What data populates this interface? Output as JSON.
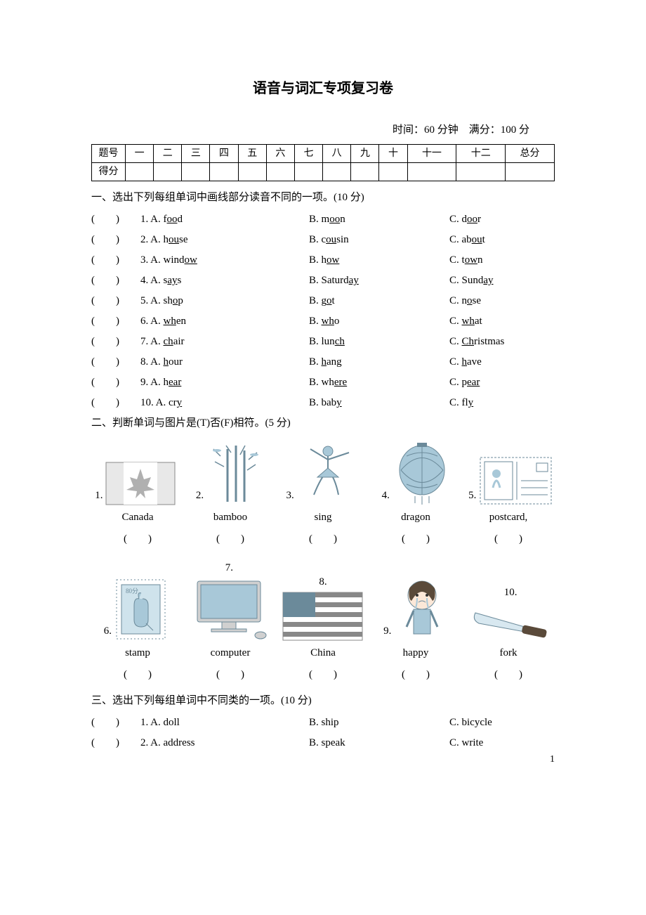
{
  "title": "语音与词汇专项复习卷",
  "meta": "时间：60 分钟　满分：100 分",
  "score_header": [
    "题号",
    "一",
    "二",
    "三",
    "四",
    "五",
    "六",
    "七",
    "八",
    "九",
    "十",
    "十一",
    "十二",
    "总分"
  ],
  "score_row2_label": "得分",
  "section1": {
    "head": "一、选出下列每组单词中画线部分读音不同的一项。(10 分)",
    "items": [
      {
        "n": "1.",
        "A_pre": "f",
        "A_u": "oo",
        "A_post": "d",
        "B_pre": "m",
        "B_u": "oo",
        "B_post": "n",
        "C_pre": "d",
        "C_u": "oo",
        "C_post": "r"
      },
      {
        "n": "2.",
        "A_pre": "h",
        "A_u": "ou",
        "A_post": "se",
        "B_pre": "c",
        "B_u": "ou",
        "B_post": "sin",
        "C_pre": "ab",
        "C_u": "ou",
        "C_post": "t"
      },
      {
        "n": "3.",
        "A_pre": "wind",
        "A_u": "ow",
        "A_post": "",
        "B_pre": "h",
        "B_u": "ow",
        "B_post": "",
        "C_pre": "t",
        "C_u": "ow",
        "C_post": "n"
      },
      {
        "n": "4.",
        "A_pre": "s",
        "A_u": "ay",
        "A_post": "s",
        "B_pre": "Saturd",
        "B_u": "ay",
        "B_post": "",
        "C_pre": "Sund",
        "C_u": "ay",
        "C_post": ""
      },
      {
        "n": "5.",
        "A_pre": "sh",
        "A_u": "o",
        "A_post": "p",
        "B_pre": "g",
        "B_u": "o",
        "B_post": "t",
        "C_pre": "n",
        "C_u": "o",
        "C_post": "se"
      },
      {
        "n": "6.",
        "A_pre": "",
        "A_u": "wh",
        "A_post": "en",
        "B_pre": "",
        "B_u": "wh",
        "B_post": "o",
        "C_pre": "",
        "C_u": "wh",
        "C_post": "at"
      },
      {
        "n": "7.",
        "A_pre": "",
        "A_u": "ch",
        "A_post": "air",
        "B_pre": "lun",
        "B_u": "ch",
        "B_post": "",
        "C_pre": "",
        "C_u": "Ch",
        "C_post": "ristmas"
      },
      {
        "n": "8.",
        "A_pre": "",
        "A_u": "h",
        "A_post": "our",
        "B_pre": "",
        "B_u": "h",
        "B_post": "ang",
        "C_pre": "",
        "C_u": "h",
        "C_post": "ave"
      },
      {
        "n": "9.",
        "A_pre": "h",
        "A_u": "ear",
        "A_post": "",
        "B_pre": "wh",
        "B_u": "ere",
        "B_post": "",
        "C_pre": "p",
        "C_u": "ear",
        "C_post": ""
      },
      {
        "n": "10.",
        "A_pre": "cr",
        "A_u": "y",
        "A_post": "",
        "B_pre": "bab",
        "B_u": "y",
        "B_post": "",
        "C_pre": "fl",
        "C_u": "y",
        "C_post": ""
      }
    ]
  },
  "section2": {
    "head": "二、判断单词与图片是(T)否(F)相符。(5 分)",
    "row1_nums": [
      "1.",
      "2.",
      "3.",
      "4.",
      "5."
    ],
    "row1_labels": [
      "Canada",
      "bamboo",
      "sing",
      "dragon",
      "postcard,"
    ],
    "row2_nums": [
      "6.",
      "7.",
      "8.",
      "9.",
      "10."
    ],
    "row2_labels": [
      "stamp",
      "computer",
      "China",
      "happy",
      "fork"
    ],
    "paren": "(　　)"
  },
  "section3": {
    "head": "三、选出下列每组单词中不同类的一项。(10 分)",
    "items": [
      {
        "n": "1.",
        "A": "doll",
        "B": "ship",
        "C": "bicycle"
      },
      {
        "n": "2.",
        "A": "address",
        "B": "speak",
        "C": "write"
      }
    ]
  },
  "labels": {
    "A": "A. ",
    "B": "B. ",
    "C": "C. "
  },
  "paren": "(　　)",
  "page_num": "1",
  "colors": {
    "text": "#000000",
    "bg": "#ffffff",
    "clip": "#a8c8d8",
    "clip_dark": "#6b8a9a"
  }
}
